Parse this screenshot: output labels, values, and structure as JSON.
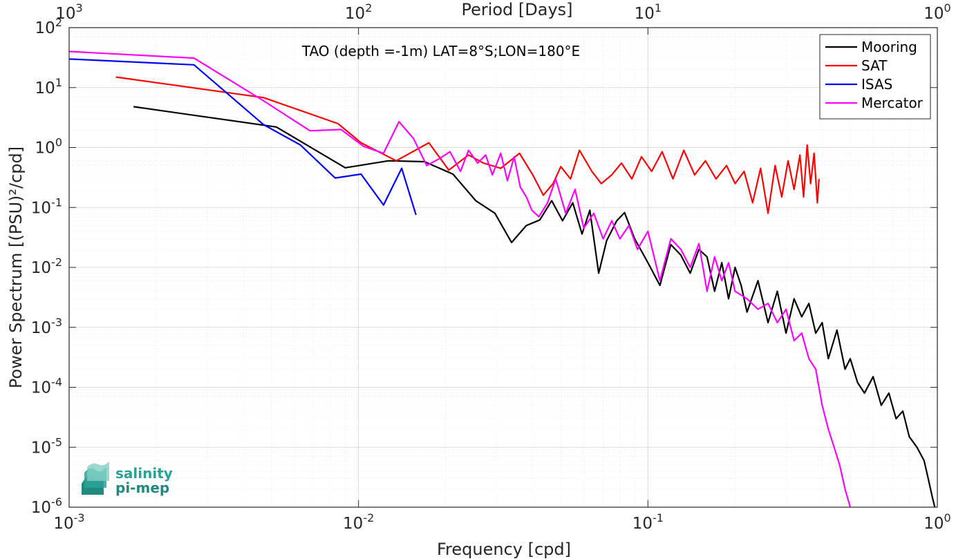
{
  "chart_data": {
    "type": "line",
    "title": "TAO (depth =-1m) LAT=8°S;LON=180°E",
    "xlabel": "Frequency [cpd]",
    "ylabel": "Power Spectrum [(PSU)²/cpd]",
    "x2label": "Period [Days]",
    "xscale": "log",
    "yscale": "log",
    "xlim": [
      0.001,
      1
    ],
    "ylim": [
      1e-06,
      100
    ],
    "grid": true,
    "legend_position": "top-right",
    "x_ticks": [
      {
        "value": 0.001,
        "base": "10",
        "exp": "-3"
      },
      {
        "value": 0.01,
        "base": "10",
        "exp": "-2"
      },
      {
        "value": 0.1,
        "base": "10",
        "exp": "-1"
      },
      {
        "value": 1,
        "base": "10",
        "exp": "0"
      }
    ],
    "x2_ticks": [
      {
        "value": 1000,
        "base": "10",
        "exp": "3"
      },
      {
        "value": 100,
        "base": "10",
        "exp": "2"
      },
      {
        "value": 10,
        "base": "10",
        "exp": "1"
      },
      {
        "value": 1,
        "base": "10",
        "exp": "0"
      }
    ],
    "y_ticks": [
      {
        "value": 100,
        "base": "10",
        "exp": "2"
      },
      {
        "value": 10,
        "base": "10",
        "exp": "1"
      },
      {
        "value": 1,
        "base": "10",
        "exp": "0"
      },
      {
        "value": 0.1,
        "base": "10",
        "exp": "-1"
      },
      {
        "value": 0.01,
        "base": "10",
        "exp": "-2"
      },
      {
        "value": 0.001,
        "base": "10",
        "exp": "-3"
      },
      {
        "value": 0.0001,
        "base": "10",
        "exp": "-4"
      },
      {
        "value": 1e-05,
        "base": "10",
        "exp": "-5"
      },
      {
        "value": 1e-06,
        "base": "10",
        "exp": "-6"
      }
    ],
    "series": [
      {
        "name": "Mooring",
        "color": "#000000",
        "x": [
          0.00167,
          0.0052,
          0.009,
          0.0127,
          0.0169,
          0.0212,
          0.0254,
          0.0296,
          0.0338,
          0.038,
          0.0423,
          0.0465,
          0.0507,
          0.055,
          0.0592,
          0.063,
          0.0676,
          0.072,
          0.078,
          0.083,
          0.09,
          0.1,
          0.11,
          0.12,
          0.13,
          0.14,
          0.15,
          0.16,
          0.17,
          0.18,
          0.19,
          0.2,
          0.21,
          0.22,
          0.24,
          0.26,
          0.28,
          0.3,
          0.32,
          0.34,
          0.36,
          0.38,
          0.4,
          0.42,
          0.45,
          0.48,
          0.5,
          0.53,
          0.56,
          0.6,
          0.64,
          0.68,
          0.72,
          0.76,
          0.8,
          0.85,
          0.9,
          0.93,
          0.96,
          0.98
        ],
        "y": [
          4.8,
          2.2,
          0.46,
          0.6,
          0.58,
          0.36,
          0.13,
          0.08,
          0.026,
          0.05,
          0.062,
          0.13,
          0.06,
          0.12,
          0.036,
          0.09,
          0.008,
          0.028,
          0.06,
          0.082,
          0.03,
          0.012,
          0.005,
          0.024,
          0.016,
          0.008,
          0.02,
          0.015,
          0.004,
          0.012,
          0.003,
          0.01,
          0.005,
          0.0018,
          0.006,
          0.0012,
          0.004,
          0.0008,
          0.003,
          0.0015,
          0.0025,
          0.0008,
          0.0012,
          0.0003,
          0.0009,
          0.0002,
          0.0003,
          0.00012,
          8e-05,
          0.00015,
          5e-05,
          8e-05,
          3e-05,
          4e-05,
          1.5e-05,
          1e-05,
          6e-06,
          3e-06,
          1.5e-06,
          1e-06
        ]
      },
      {
        "name": "SAT",
        "color": "#ff0000",
        "x": [
          0.00145,
          0.0047,
          0.0085,
          0.0102,
          0.0135,
          0.0175,
          0.0205,
          0.024,
          0.027,
          0.031,
          0.036,
          0.04,
          0.0435,
          0.047,
          0.05,
          0.054,
          0.058,
          0.064,
          0.069,
          0.075,
          0.081,
          0.088,
          0.095,
          0.103,
          0.112,
          0.122,
          0.133,
          0.145,
          0.158,
          0.172,
          0.187,
          0.2,
          0.215,
          0.23,
          0.245,
          0.26,
          0.275,
          0.29,
          0.305,
          0.32,
          0.335,
          0.345,
          0.355,
          0.365,
          0.375,
          0.385,
          0.39
        ],
        "y": [
          15.0,
          6.8,
          2.5,
          1.2,
          0.6,
          1.2,
          0.42,
          0.75,
          0.55,
          0.45,
          0.8,
          0.35,
          0.16,
          0.25,
          0.48,
          0.3,
          0.9,
          0.4,
          0.25,
          0.35,
          0.55,
          0.3,
          0.7,
          0.4,
          0.85,
          0.3,
          0.9,
          0.35,
          0.6,
          0.3,
          0.5,
          0.25,
          0.4,
          0.12,
          0.45,
          0.08,
          0.5,
          0.15,
          0.6,
          0.2,
          0.75,
          0.15,
          1.1,
          0.25,
          0.8,
          0.12,
          0.3
        ]
      },
      {
        "name": "ISAS",
        "color": "#0000ff",
        "x": [
          0.001,
          0.0027,
          0.0047,
          0.0063,
          0.0083,
          0.0102,
          0.0122,
          0.0141,
          0.0158
        ],
        "y": [
          30.0,
          24.0,
          2.4,
          1.1,
          0.31,
          0.36,
          0.11,
          0.45,
          0.075
        ]
      },
      {
        "name": "Mercator",
        "color": "#ff00ff",
        "x": [
          0.001,
          0.0027,
          0.0047,
          0.0068,
          0.0087,
          0.0104,
          0.0122,
          0.0138,
          0.0155,
          0.0172,
          0.019,
          0.0207,
          0.0225,
          0.024,
          0.0258,
          0.0275,
          0.029,
          0.031,
          0.0327,
          0.0345,
          0.0362,
          0.038,
          0.0397,
          0.042,
          0.045,
          0.048,
          0.052,
          0.056,
          0.06,
          0.065,
          0.07,
          0.075,
          0.08,
          0.086,
          0.092,
          0.1,
          0.11,
          0.12,
          0.13,
          0.14,
          0.15,
          0.16,
          0.17,
          0.18,
          0.19,
          0.2,
          0.22,
          0.24,
          0.26,
          0.28,
          0.3,
          0.32,
          0.34,
          0.36,
          0.38,
          0.4,
          0.42,
          0.44,
          0.46,
          0.48,
          0.5
        ],
        "y": [
          40.0,
          31.0,
          6.0,
          1.9,
          2.0,
          1.05,
          0.8,
          2.7,
          1.4,
          0.5,
          0.65,
          0.85,
          0.4,
          0.9,
          0.55,
          0.75,
          0.35,
          0.8,
          0.28,
          0.7,
          0.22,
          0.15,
          0.09,
          0.07,
          0.12,
          0.3,
          0.08,
          0.2,
          0.045,
          0.08,
          0.03,
          0.06,
          0.03,
          0.05,
          0.02,
          0.04,
          0.006,
          0.03,
          0.02,
          0.01,
          0.025,
          0.004,
          0.015,
          0.006,
          0.012,
          0.004,
          0.003,
          0.002,
          0.0025,
          0.0012,
          0.002,
          0.0006,
          0.0008,
          0.0003,
          0.0002,
          5e-05,
          2e-05,
          1e-05,
          5e-06,
          2e-06,
          1e-06
        ]
      }
    ]
  },
  "logo": {
    "line1": "salinity",
    "line2": "pi-mep",
    "color": "#2aa198"
  }
}
